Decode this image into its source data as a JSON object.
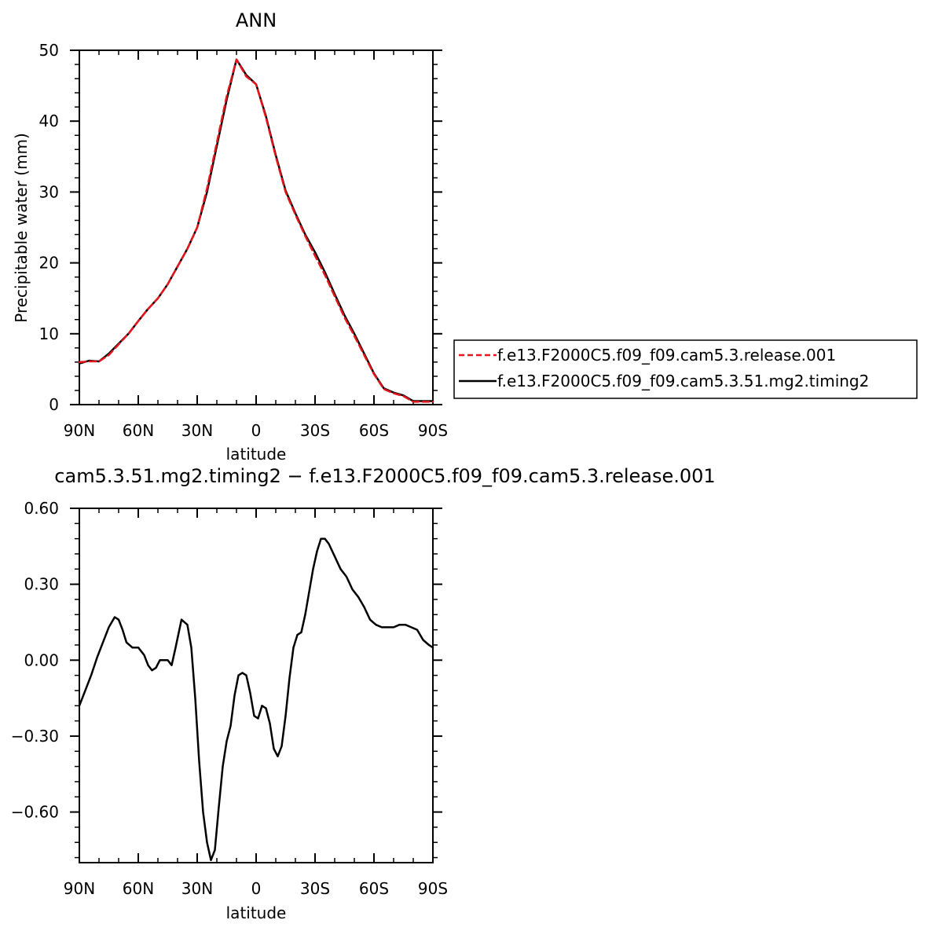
{
  "chart_data": [
    {
      "type": "line",
      "title": "ANN",
      "xlabel": "latitude",
      "ylabel": "Precipitable water (mm)",
      "xlim": [
        90,
        -90
      ],
      "ylim": [
        0,
        50
      ],
      "x_ticks": [
        90,
        60,
        30,
        0,
        -30,
        -60,
        -90
      ],
      "x_tick_labels": [
        "90N",
        "60N",
        "30N",
        "0",
        "30S",
        "60S",
        "90S"
      ],
      "y_ticks": [
        0,
        10,
        20,
        30,
        40,
        50
      ],
      "y_tick_labels": [
        "0",
        "10",
        "20",
        "30",
        "40",
        "50"
      ],
      "grid": false,
      "legend_position": "right",
      "series": [
        {
          "name": "f.e13.F2000C5.f09_f09.cam5.3.release.001",
          "color": "#e8141b",
          "style": "dashed",
          "x": [
            90,
            85,
            80,
            75,
            70,
            65,
            60,
            55,
            50,
            45,
            40,
            35,
            30,
            25,
            20,
            15,
            10,
            5,
            0,
            -5,
            -10,
            -15,
            -20,
            -25,
            -30,
            -35,
            -40,
            -45,
            -50,
            -55,
            -60,
            -65,
            -70,
            -75,
            -80,
            -85,
            -90
          ],
          "values": [
            6.0,
            6.1,
            6.1,
            7.0,
            8.5,
            10.0,
            11.8,
            13.5,
            15.0,
            17.0,
            19.5,
            22.0,
            25.0,
            30.5,
            37.0,
            43.5,
            48.7,
            46.3,
            45.2,
            40.5,
            35.0,
            30.0,
            26.8,
            23.8,
            21.0,
            18.3,
            15.3,
            12.3,
            9.7,
            7.0,
            4.3,
            2.2,
            1.6,
            1.2,
            0.4,
            0.4,
            0.4
          ]
        },
        {
          "name": "f.e13.F2000C5.f09_f09.cam5.3.51.mg2.timing2",
          "color": "#000000",
          "style": "solid",
          "x": [
            90,
            85,
            80,
            75,
            70,
            65,
            60,
            55,
            50,
            45,
            40,
            35,
            30,
            25,
            20,
            15,
            10,
            5,
            0,
            -5,
            -10,
            -15,
            -20,
            -25,
            -30,
            -35,
            -40,
            -45,
            -50,
            -55,
            -60,
            -65,
            -70,
            -75,
            -80,
            -85,
            -90
          ],
          "values": [
            5.8,
            6.2,
            6.1,
            7.2,
            8.6,
            10.0,
            11.8,
            13.5,
            15.0,
            17.0,
            19.5,
            22.0,
            25.0,
            30.0,
            36.5,
            43.0,
            48.7,
            46.5,
            45.2,
            40.7,
            35.2,
            30.2,
            27.0,
            24.0,
            21.5,
            18.7,
            15.6,
            12.6,
            10.0,
            7.2,
            4.4,
            2.3,
            1.7,
            1.3,
            0.5,
            0.5,
            0.5
          ]
        }
      ]
    },
    {
      "type": "line",
      "title": "f.e13.F2000C5.f09_f09.cam5.3.51.mg2.timing2 - f.e13.F2000C5.f09_f09.cam5.3.release.001",
      "visible_title": "cam5.3.51.mg2.timing2 − f.e13.F2000C5.f09_f09.cam5.3.release.001",
      "xlabel": "latitude",
      "ylabel": "",
      "xlim": [
        90,
        -90
      ],
      "ylim": [
        -0.8,
        0.6
      ],
      "x_ticks": [
        90,
        60,
        30,
        0,
        -30,
        -60,
        -90
      ],
      "x_tick_labels": [
        "90N",
        "60N",
        "30N",
        "0",
        "30S",
        "60S",
        "90S"
      ],
      "y_ticks": [
        0.6,
        0.3,
        0.0,
        -0.3,
        -0.6
      ],
      "y_tick_labels": [
        "0.60",
        "0.30",
        "0.00",
        "−0.30",
        "−0.60"
      ],
      "grid": false,
      "series": [
        {
          "name": "",
          "color": "#000000",
          "style": "solid",
          "x": [
            90,
            87,
            84,
            81,
            78,
            75,
            72,
            70,
            68,
            66,
            63,
            60,
            57,
            55,
            53,
            51,
            49,
            47,
            45,
            43,
            41,
            38,
            35,
            33,
            31,
            29,
            27,
            25,
            23,
            21,
            19,
            17,
            15,
            13,
            11,
            9,
            7,
            5,
            3,
            1,
            -1,
            -3,
            -5,
            -7,
            -9,
            -11,
            -13,
            -15,
            -17,
            -19,
            -21,
            -23,
            -25,
            -27,
            -29,
            -31,
            -33,
            -35,
            -37,
            -40,
            -43,
            -46,
            -49,
            -52,
            -55,
            -58,
            -61,
            -64,
            -67,
            -70,
            -73,
            -76,
            -79,
            -82,
            -85,
            -88,
            -90
          ],
          "values": [
            -0.18,
            -0.12,
            -0.06,
            0.01,
            0.07,
            0.13,
            0.17,
            0.16,
            0.12,
            0.07,
            0.05,
            0.05,
            0.02,
            -0.02,
            -0.04,
            -0.03,
            0.0,
            0.0,
            0.0,
            -0.02,
            0.05,
            0.16,
            0.14,
            0.05,
            -0.15,
            -0.4,
            -0.6,
            -0.72,
            -0.79,
            -0.75,
            -0.58,
            -0.42,
            -0.32,
            -0.26,
            -0.14,
            -0.06,
            -0.05,
            -0.06,
            -0.13,
            -0.22,
            -0.23,
            -0.18,
            -0.19,
            -0.25,
            -0.35,
            -0.38,
            -0.34,
            -0.22,
            -0.07,
            0.05,
            0.1,
            0.11,
            0.18,
            0.27,
            0.36,
            0.43,
            0.48,
            0.48,
            0.46,
            0.41,
            0.36,
            0.33,
            0.28,
            0.25,
            0.21,
            0.16,
            0.14,
            0.13,
            0.13,
            0.13,
            0.14,
            0.14,
            0.13,
            0.12,
            0.08,
            0.06,
            0.05
          ]
        }
      ]
    }
  ]
}
